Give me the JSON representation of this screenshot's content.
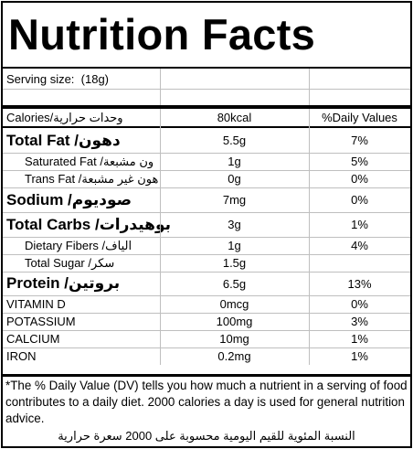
{
  "title": "Nutrition Facts",
  "serving": {
    "label": "Serving size:",
    "value": "(18g)"
  },
  "header": {
    "calories_label": "Calories/",
    "calories_ar": "وحدات حرارية",
    "amount": "80kcal",
    "dv": "%Daily Values"
  },
  "nutrients": [
    {
      "name": "Total Fat / ",
      "ar": "دهون",
      "amount": "5.5g",
      "dv": "7%",
      "style": "big"
    },
    {
      "name": "Saturated Fat / ",
      "ar": "ون مشبعة",
      "amount": "1g",
      "dv": "5%",
      "style": "sub"
    },
    {
      "name": "Trans Fat / ",
      "ar": "هون غير مشبعة",
      "amount": "0g",
      "dv": "0%",
      "style": "sub"
    },
    {
      "name": "Sodium / ",
      "ar": "صوديوم",
      "amount": "7mg",
      "dv": "0%",
      "style": "big"
    },
    {
      "name": "Total Carbs / ",
      "ar": "بوهيدرات",
      "amount": "3g",
      "dv": "1%",
      "style": "big"
    },
    {
      "name": "Dietary Fibers / ",
      "ar": "الياف",
      "amount": "1g",
      "dv": "4%",
      "style": "sub"
    },
    {
      "name": "Total Sugar / ",
      "ar": "سكر",
      "amount": "1.5g",
      "dv": "",
      "style": "sub"
    },
    {
      "name": "Protein / ",
      "ar": "بروتين",
      "amount": "6.5g",
      "dv": "13%",
      "style": "big"
    },
    {
      "name": "VITAMIN D",
      "ar": "",
      "amount": "0mcg",
      "dv": "0%",
      "style": "norm"
    },
    {
      "name": "POTASSIUM",
      "ar": "",
      "amount": "100mg",
      "dv": "3%",
      "style": "norm"
    },
    {
      "name": "CALCIUM",
      "ar": "",
      "amount": "10mg",
      "dv": "1%",
      "style": "norm"
    },
    {
      "name": "IRON",
      "ar": "",
      "amount": "0.2mg",
      "dv": "1%",
      "style": "norm"
    }
  ],
  "footnote": "*The % Daily Value (DV) tells you how much a nutrient in a serving of food contributes to a daily diet. 2000 calories a day is used for general nutrition advice.",
  "footnote_ar": "النسبة المئوية للقيم اليومية محسوبة على 2000 سعرة حرارية"
}
